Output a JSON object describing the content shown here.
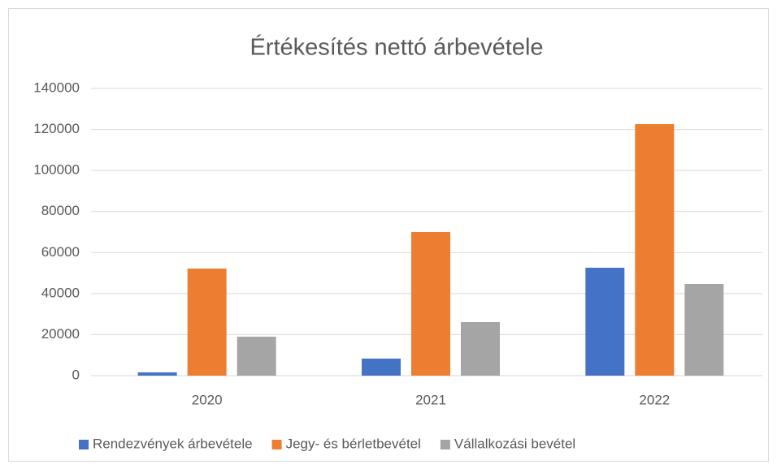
{
  "chart_data": {
    "type": "bar",
    "title": "Értékesítés nettó árbevétele",
    "categories": [
      "2020",
      "2021",
      "2022"
    ],
    "series": [
      {
        "name": "Rendezvények árbevétele",
        "color": "#4472c4",
        "values": [
          1600,
          8300,
          52600
        ]
      },
      {
        "name": "Jegy- és bérletbevétel",
        "color": "#ed7d31",
        "values": [
          52200,
          70000,
          122600
        ]
      },
      {
        "name": "Vállalkozási bevétel",
        "color": "#a5a5a5",
        "values": [
          19000,
          26100,
          44700
        ]
      }
    ],
    "ylim": [
      0,
      140000
    ],
    "yticks": [
      0,
      20000,
      40000,
      60000,
      80000,
      100000,
      120000,
      140000
    ],
    "grid": true,
    "legend": "bottom"
  }
}
